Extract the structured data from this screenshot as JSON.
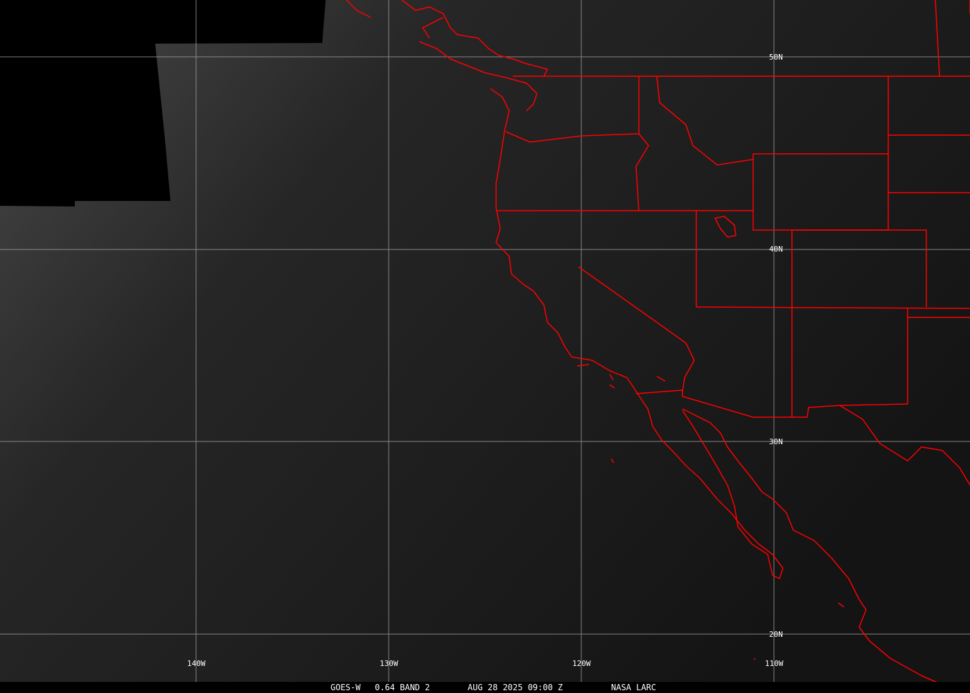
{
  "image": {
    "satellite": "GOES-W",
    "channel": "0.64 BAND 2",
    "datetime": "AUG 28 2025 09:00 Z",
    "credit": "NASA LARC"
  },
  "grid": {
    "latitudes": [
      "50N",
      "40N",
      "30N",
      "20N"
    ],
    "longitudes": [
      "140W",
      "130W",
      "120W",
      "110W"
    ]
  },
  "colors": {
    "boundaries": "#ff0000",
    "grid": "#a0a0a0",
    "text": "#ffffff",
    "no_data": "#000000"
  }
}
